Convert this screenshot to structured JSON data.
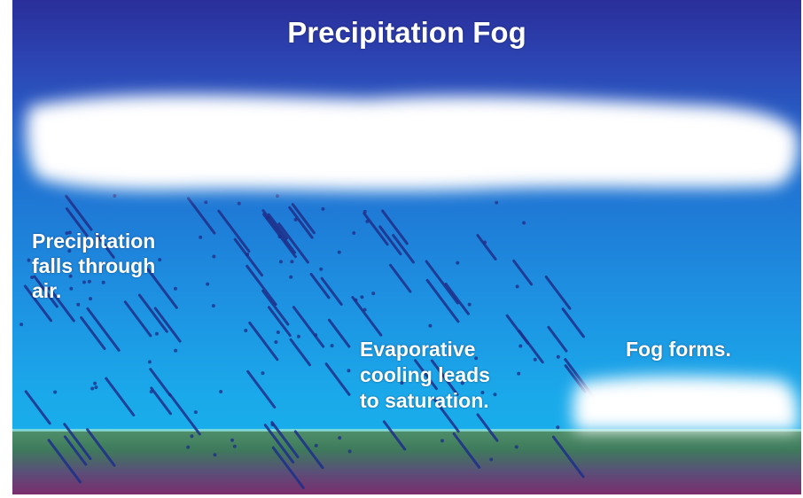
{
  "title": "Precipitation Fog",
  "labels": {
    "precipitation": [
      "Precipitation",
      "falls through",
      "air."
    ],
    "evaporative": [
      "Evaporative",
      "cooling leads",
      "to saturation."
    ],
    "fog": "Fog forms."
  },
  "colors": {
    "sky_top": "#2a2e9a",
    "sky_bottom": "#17b4ee",
    "cloud": "#ffffff",
    "rain": "#1e2f8a",
    "ground_top": "#4f8f6a",
    "ground_bottom": "#7b2d6e"
  }
}
